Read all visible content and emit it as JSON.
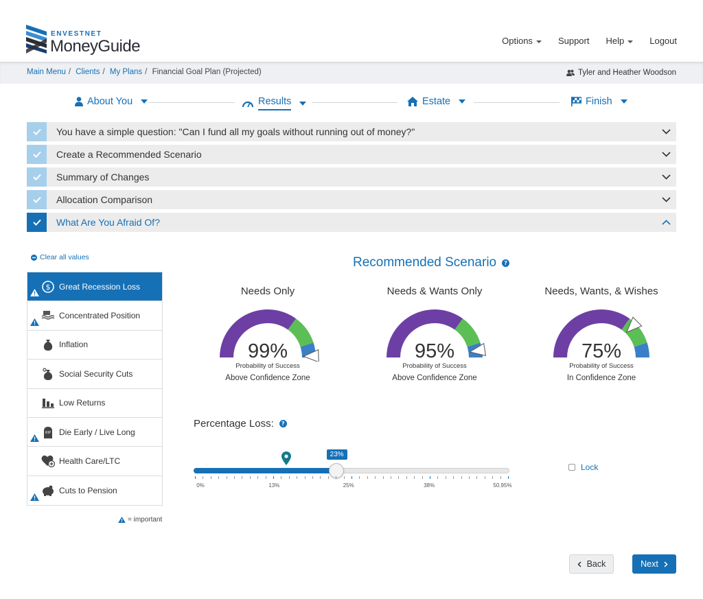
{
  "brand": {
    "top": "ENVESTNET",
    "name": "MoneyGuide"
  },
  "topnav": {
    "options": "Options",
    "support": "Support",
    "help": "Help",
    "logout": "Logout"
  },
  "breadcrumb": {
    "main_menu": "Main Menu",
    "clients": "Clients",
    "my_plans": "My Plans",
    "current": "Financial Goal Plan (Projected)"
  },
  "client_name": "Tyler and Heather Woodson",
  "steps": {
    "about": "About You",
    "results": "Results",
    "estate": "Estate",
    "finish": "Finish"
  },
  "accordion": {
    "q1": "You have a simple question: \"Can I fund all my goals without running out of money?\"",
    "q2": "Create a Recommended Scenario",
    "q3": "Summary of Changes",
    "q4": "Allocation Comparison",
    "q5": "What Are You Afraid Of?"
  },
  "clear_all": "Clear all values",
  "risks": [
    {
      "label": "Great Recession Loss",
      "important": true
    },
    {
      "label": "Concentrated Position",
      "important": true
    },
    {
      "label": "Inflation",
      "important": false
    },
    {
      "label": "Social Security Cuts",
      "important": false
    },
    {
      "label": "Low Returns",
      "important": false
    },
    {
      "label": "Die Early / Live Long",
      "important": true
    },
    {
      "label": "Health Care/LTC",
      "important": false
    },
    {
      "label": "Cuts to Pension",
      "important": true
    }
  ],
  "legend_text": "= important",
  "scenario_title": "Recommended Scenario",
  "gauges": [
    {
      "title": "Needs Only",
      "percent": "99%",
      "prob_label": "Probability of Success",
      "zone": "Above Confidence Zone",
      "value": 99
    },
    {
      "title": "Needs & Wants Only",
      "percent": "95%",
      "prob_label": "Probability of Success",
      "zone": "Above Confidence Zone",
      "value": 95
    },
    {
      "title": "Needs, Wants, & Wishes",
      "percent": "75%",
      "prob_label": "Probability of Success",
      "zone": "In Confidence Zone",
      "value": 75
    }
  ],
  "gauge_colors": {
    "purple": "#6d3fa4",
    "green": "#5cbf55",
    "blue": "#3b7fc6"
  },
  "percentage_loss": {
    "label": "Percentage Loss:",
    "value_label": "23%",
    "value": 23,
    "max": 50.95,
    "marker_value": 15,
    "tick_labels": [
      "0%",
      "13%",
      "25%",
      "38%",
      "50.95%"
    ],
    "tick_values": [
      0,
      13,
      25,
      38,
      50.95
    ]
  },
  "lock_label": "Lock",
  "buttons": {
    "back": "Back",
    "next": "Next"
  }
}
